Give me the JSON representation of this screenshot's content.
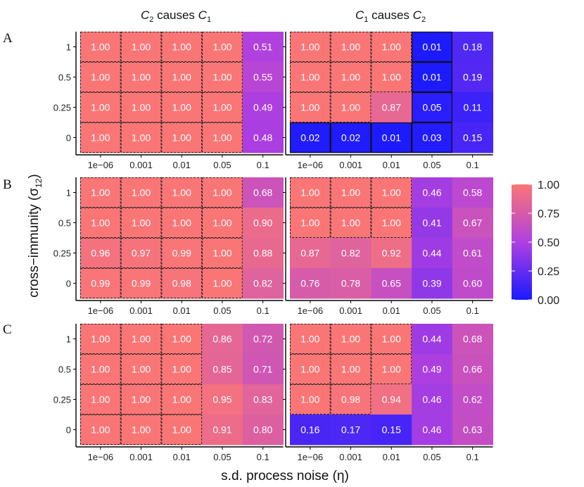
{
  "chart_data": {
    "type": "heatmap",
    "col_titles": [
      {
        "first": "C",
        "first_sub": "2",
        "mid": " causes ",
        "second": "C",
        "second_sub": "1"
      },
      {
        "first": "C",
        "first_sub": "1",
        "mid": " causes ",
        "second": "C",
        "second_sub": "2"
      }
    ],
    "row_labels": [
      "A",
      "B",
      "C"
    ],
    "x_ticks": [
      "1e−06",
      "0.001",
      "0.01",
      "0.05",
      "0.1"
    ],
    "y_ticks": [
      "1",
      "0.5",
      "0.25",
      "0"
    ],
    "xlabel": "s.d. process noise (η)",
    "ylabel_main": "cross−immunity (σ",
    "ylabel_sub": "12",
    "ylabel_close": ")",
    "legend": {
      "ticks": [
        "1.00",
        "0.75",
        "0.50",
        "0.25",
        "0.00"
      ],
      "values": [
        1.0,
        0.75,
        0.5,
        0.25,
        0.0
      ],
      "range": [
        0,
        1
      ]
    },
    "colors": {
      "low": "#1a1aff",
      "mid": "#b040e0",
      "high": "#fa7676"
    },
    "panels": [
      {
        "row": "A",
        "col": 0,
        "values": [
          [
            1.0,
            1.0,
            1.0,
            1.0,
            0.51
          ],
          [
            1.0,
            1.0,
            1.0,
            1.0,
            0.55
          ],
          [
            1.0,
            1.0,
            1.0,
            1.0,
            0.49
          ],
          [
            1.0,
            1.0,
            1.0,
            1.0,
            0.48
          ]
        ],
        "value_labels": [
          [
            "1.00",
            "1.00",
            "1.00",
            "1.00",
            "0.51"
          ],
          [
            "1.00",
            "1.00",
            "1.00",
            "1.00",
            "0.55"
          ],
          [
            "1.00",
            "1.00",
            "1.00",
            "1.00",
            "0.49"
          ],
          [
            "1.00",
            "1.00",
            "1.00",
            "1.00",
            "0.48"
          ]
        ],
        "dashed": [
          [
            1,
            1,
            1,
            1,
            0
          ],
          [
            1,
            1,
            1,
            1,
            0
          ],
          [
            1,
            1,
            1,
            1,
            0
          ],
          [
            1,
            1,
            1,
            1,
            0
          ]
        ],
        "solid": [
          [
            0,
            0,
            0,
            0,
            0
          ],
          [
            0,
            0,
            0,
            0,
            0
          ],
          [
            0,
            0,
            0,
            0,
            0
          ],
          [
            0,
            0,
            0,
            0,
            0
          ]
        ]
      },
      {
        "row": "A",
        "col": 1,
        "values": [
          [
            1.0,
            1.0,
            1.0,
            0.01,
            0.18
          ],
          [
            1.0,
            1.0,
            1.0,
            0.01,
            0.19
          ],
          [
            1.0,
            1.0,
            0.87,
            0.05,
            0.11
          ],
          [
            0.02,
            0.02,
            0.01,
            0.03,
            0.15
          ]
        ],
        "value_labels": [
          [
            "1.00",
            "1.00",
            "1.00",
            "0.01",
            "0.18"
          ],
          [
            "1.00",
            "1.00",
            "1.00",
            "0.01",
            "0.19"
          ],
          [
            "1.00",
            "1.00",
            "0.87",
            "0.05",
            "0.11"
          ],
          [
            "0.02",
            "0.02",
            "0.01",
            "0.03",
            "0.15"
          ]
        ],
        "dashed": [
          [
            1,
            1,
            1,
            0,
            0
          ],
          [
            1,
            1,
            1,
            0,
            0
          ],
          [
            1,
            1,
            0,
            0,
            0
          ],
          [
            0,
            0,
            0,
            0,
            0
          ]
        ],
        "solid": [
          [
            0,
            0,
            0,
            1,
            0
          ],
          [
            0,
            0,
            0,
            1,
            0
          ],
          [
            0,
            0,
            0,
            1,
            0
          ],
          [
            1,
            1,
            1,
            1,
            0
          ]
        ]
      },
      {
        "row": "B",
        "col": 0,
        "values": [
          [
            1.0,
            1.0,
            1.0,
            1.0,
            0.68
          ],
          [
            1.0,
            1.0,
            1.0,
            1.0,
            0.9
          ],
          [
            0.96,
            0.97,
            0.99,
            1.0,
            0.88
          ],
          [
            0.99,
            0.99,
            0.98,
            1.0,
            0.82
          ]
        ],
        "value_labels": [
          [
            "1.00",
            "1.00",
            "1.00",
            "1.00",
            "0.68"
          ],
          [
            "1.00",
            "1.00",
            "1.00",
            "1.00",
            "0.90"
          ],
          [
            "0.96",
            "0.97",
            "0.99",
            "1.00",
            "0.88"
          ],
          [
            "0.99",
            "0.99",
            "0.98",
            "1.00",
            "0.82"
          ]
        ],
        "dashed": [
          [
            1,
            1,
            1,
            1,
            0
          ],
          [
            1,
            1,
            1,
            1,
            0
          ],
          [
            1,
            1,
            1,
            1,
            0
          ],
          [
            1,
            1,
            1,
            1,
            0
          ]
        ],
        "solid": [
          [
            0,
            0,
            0,
            0,
            0
          ],
          [
            0,
            0,
            0,
            0,
            0
          ],
          [
            0,
            0,
            0,
            0,
            0
          ],
          [
            0,
            0,
            0,
            0,
            0
          ]
        ]
      },
      {
        "row": "B",
        "col": 1,
        "values": [
          [
            1.0,
            1.0,
            1.0,
            0.46,
            0.58
          ],
          [
            1.0,
            1.0,
            1.0,
            0.41,
            0.67
          ],
          [
            0.87,
            0.82,
            0.92,
            0.44,
            0.61
          ],
          [
            0.76,
            0.78,
            0.65,
            0.39,
            0.6
          ]
        ],
        "value_labels": [
          [
            "1.00",
            "1.00",
            "1.00",
            "0.46",
            "0.58"
          ],
          [
            "1.00",
            "1.00",
            "1.00",
            "0.41",
            "0.67"
          ],
          [
            "0.87",
            "0.82",
            "0.92",
            "0.44",
            "0.61"
          ],
          [
            "0.76",
            "0.78",
            "0.65",
            "0.39",
            "0.60"
          ]
        ],
        "dashed": [
          [
            1,
            1,
            1,
            0,
            0
          ],
          [
            1,
            1,
            1,
            0,
            0
          ],
          [
            0,
            0,
            0,
            0,
            0
          ],
          [
            0,
            0,
            0,
            0,
            0
          ]
        ],
        "solid": [
          [
            0,
            0,
            0,
            0,
            0
          ],
          [
            0,
            0,
            0,
            0,
            0
          ],
          [
            0,
            0,
            0,
            0,
            0
          ],
          [
            0,
            0,
            0,
            0,
            0
          ]
        ]
      },
      {
        "row": "C",
        "col": 0,
        "values": [
          [
            1.0,
            1.0,
            1.0,
            0.86,
            0.72
          ],
          [
            1.0,
            1.0,
            1.0,
            0.85,
            0.71
          ],
          [
            1.0,
            1.0,
            1.0,
            0.95,
            0.83
          ],
          [
            1.0,
            1.0,
            1.0,
            0.91,
            0.8
          ]
        ],
        "value_labels": [
          [
            "1.00",
            "1.00",
            "1.00",
            "0.86",
            "0.72"
          ],
          [
            "1.00",
            "1.00",
            "1.00",
            "0.85",
            "0.71"
          ],
          [
            "1.00",
            "1.00",
            "1.00",
            "0.95",
            "0.83"
          ],
          [
            "1.00",
            "1.00",
            "1.00",
            "0.91",
            "0.80"
          ]
        ],
        "dashed": [
          [
            1,
            1,
            1,
            0,
            0
          ],
          [
            1,
            1,
            1,
            0,
            0
          ],
          [
            1,
            1,
            1,
            0,
            0
          ],
          [
            1,
            1,
            1,
            0,
            0
          ]
        ],
        "solid": [
          [
            0,
            0,
            0,
            0,
            0
          ],
          [
            0,
            0,
            0,
            0,
            0
          ],
          [
            0,
            0,
            0,
            0,
            0
          ],
          [
            0,
            0,
            0,
            0,
            0
          ]
        ]
      },
      {
        "row": "C",
        "col": 1,
        "values": [
          [
            1.0,
            1.0,
            1.0,
            0.44,
            0.68
          ],
          [
            1.0,
            1.0,
            1.0,
            0.49,
            0.66
          ],
          [
            1.0,
            0.98,
            0.94,
            0.46,
            0.62
          ],
          [
            0.16,
            0.17,
            0.15,
            0.46,
            0.63
          ]
        ],
        "value_labels": [
          [
            "1.00",
            "1.00",
            "1.00",
            "0.44",
            "0.68"
          ],
          [
            "1.00",
            "1.00",
            "1.00",
            "0.49",
            "0.66"
          ],
          [
            "1.00",
            "0.98",
            "0.94",
            "0.46",
            "0.62"
          ],
          [
            "0.16",
            "0.17",
            "0.15",
            "0.46",
            "0.63"
          ]
        ],
        "dashed": [
          [
            1,
            1,
            1,
            0,
            0
          ],
          [
            1,
            1,
            1,
            0,
            0
          ],
          [
            1,
            1,
            0,
            0,
            0
          ],
          [
            0,
            0,
            0,
            0,
            0
          ]
        ],
        "solid": [
          [
            0,
            0,
            0,
            0,
            0
          ],
          [
            0,
            0,
            0,
            0,
            0
          ],
          [
            0,
            0,
            0,
            0,
            0
          ],
          [
            0,
            0,
            0,
            0,
            0
          ]
        ]
      }
    ]
  }
}
